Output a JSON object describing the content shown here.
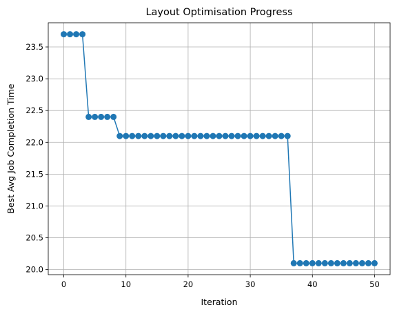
{
  "chart_data": {
    "type": "line",
    "title": "Layout Optimisation Progress",
    "xlabel": "Iteration",
    "ylabel": "Best Avg Job Completion Time",
    "xlim": [
      -2.5,
      52.5
    ],
    "ylim": [
      19.92,
      23.88
    ],
    "xticks": [
      0,
      10,
      20,
      30,
      40,
      50
    ],
    "yticks": [
      20.0,
      20.5,
      21.0,
      21.5,
      22.0,
      22.5,
      23.0,
      23.5
    ],
    "grid": true,
    "marker": "circle",
    "color": "#1f77b4",
    "x": [
      0,
      1,
      2,
      3,
      4,
      5,
      6,
      7,
      8,
      9,
      10,
      11,
      12,
      13,
      14,
      15,
      16,
      17,
      18,
      19,
      20,
      21,
      22,
      23,
      24,
      25,
      26,
      27,
      28,
      29,
      30,
      31,
      32,
      33,
      34,
      35,
      36,
      37,
      38,
      39,
      40,
      41,
      42,
      43,
      44,
      45,
      46,
      47,
      48,
      49,
      50
    ],
    "y": [
      23.7,
      23.7,
      23.7,
      23.7,
      22.4,
      22.4,
      22.4,
      22.4,
      22.4,
      22.1,
      22.1,
      22.1,
      22.1,
      22.1,
      22.1,
      22.1,
      22.1,
      22.1,
      22.1,
      22.1,
      22.1,
      22.1,
      22.1,
      22.1,
      22.1,
      22.1,
      22.1,
      22.1,
      22.1,
      22.1,
      22.1,
      22.1,
      22.1,
      22.1,
      22.1,
      22.1,
      22.1,
      20.1,
      20.1,
      20.1,
      20.1,
      20.1,
      20.1,
      20.1,
      20.1,
      20.1,
      20.1,
      20.1,
      20.1,
      20.1,
      20.1
    ]
  }
}
